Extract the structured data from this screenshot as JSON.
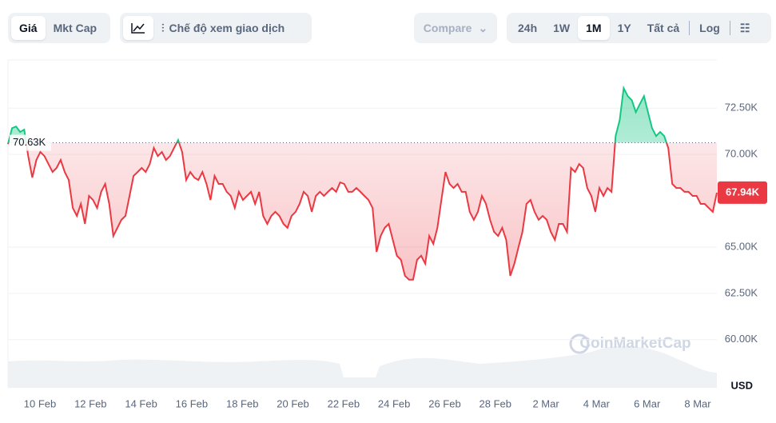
{
  "toolbar": {
    "price_tabs": [
      "Giá",
      "Mkt Cap"
    ],
    "view_mode": "Chế độ xem giao dịch",
    "compare": "Compare",
    "ranges": [
      "24h",
      "1W",
      "1M",
      "1Y",
      "Tất cả"
    ],
    "log": "Log"
  },
  "chart_data": {
    "type": "line",
    "x_labels": [
      "10 Feb",
      "12 Feb",
      "14 Feb",
      "16 Feb",
      "18 Feb",
      "20 Feb",
      "22 Feb",
      "24 Feb",
      "26 Feb",
      "28 Feb",
      "2 Mar",
      "4 Mar",
      "6 Mar",
      "8 Mar"
    ],
    "values": [
      70560,
      71420,
      71510,
      71210,
      71340,
      69910,
      68750,
      69700,
      70130,
      69910,
      69480,
      69050,
      69270,
      69700,
      69050,
      68620,
      67110,
      66680,
      67330,
      66250,
      67760,
      67540,
      67110,
      67980,
      68410,
      67330,
      65600,
      66040,
      66470,
      66680,
      67760,
      68840,
      69050,
      69270,
      69050,
      69480,
      70350,
      69910,
      70130,
      69700,
      69910,
      70350,
      70780,
      70130,
      68620,
      69050,
      68750,
      68620,
      69050,
      68410,
      67540,
      68840,
      68410,
      68410,
      67980,
      67760,
      67110,
      67980,
      67540,
      67760,
      67980,
      67330,
      67980,
      66680,
      66250,
      66680,
      66900,
      66680,
      66250,
      66040,
      66680,
      66900,
      67330,
      67980,
      67760,
      66900,
      67760,
      67980,
      67760,
      67980,
      68190,
      67980,
      68490,
      68410,
      67980,
      67980,
      68190,
      67980,
      67760,
      67540,
      67110,
      64740,
      65600,
      66040,
      66250,
      65390,
      64530,
      64310,
      63450,
      63240,
      63240,
      64310,
      64530,
      64100,
      65600,
      65170,
      66040,
      67540,
      69050,
      68410,
      68190,
      68410,
      67980,
      67980,
      66900,
      66470,
      66900,
      67760,
      67330,
      66470,
      65820,
      65600,
      66040,
      65390,
      63450,
      64100,
      64960,
      65820,
      67330,
      67540,
      66900,
      66470,
      66680,
      66470,
      65820,
      65390,
      66250,
      66250,
      65820,
      69270,
      69050,
      69480,
      69270,
      68190,
      67760,
      66900,
      68190,
      67760,
      68190,
      67980,
      70990,
      71850,
      73580,
      73150,
      72930,
      72280,
      72720,
      73150,
      72280,
      71420,
      70990,
      71210,
      70990,
      70350,
      68410,
      68190,
      68190,
      67980,
      67980,
      67760,
      67760,
      67330,
      67330,
      67110,
      66900,
      67940
    ],
    "colors": {
      "up": "#16c784",
      "down": "#ea3943"
    },
    "baseline": {
      "value": 70630,
      "label": "70.63K"
    },
    "current_price": {
      "value": 67940,
      "label": "67.94K"
    },
    "ylim": [
      57400,
      75100
    ],
    "yticks": [
      {
        "value": 60000,
        "label": "60.00K"
      },
      {
        "value": 62500,
        "label": "62.50K"
      },
      {
        "value": 65000,
        "label": "65.00K"
      },
      {
        "value": 70000,
        "label": "70.00K"
      },
      {
        "value": 72500,
        "label": "72.50K"
      }
    ],
    "y_unit": "USD",
    "watermark": "CoinMarketCap",
    "grid": true
  }
}
